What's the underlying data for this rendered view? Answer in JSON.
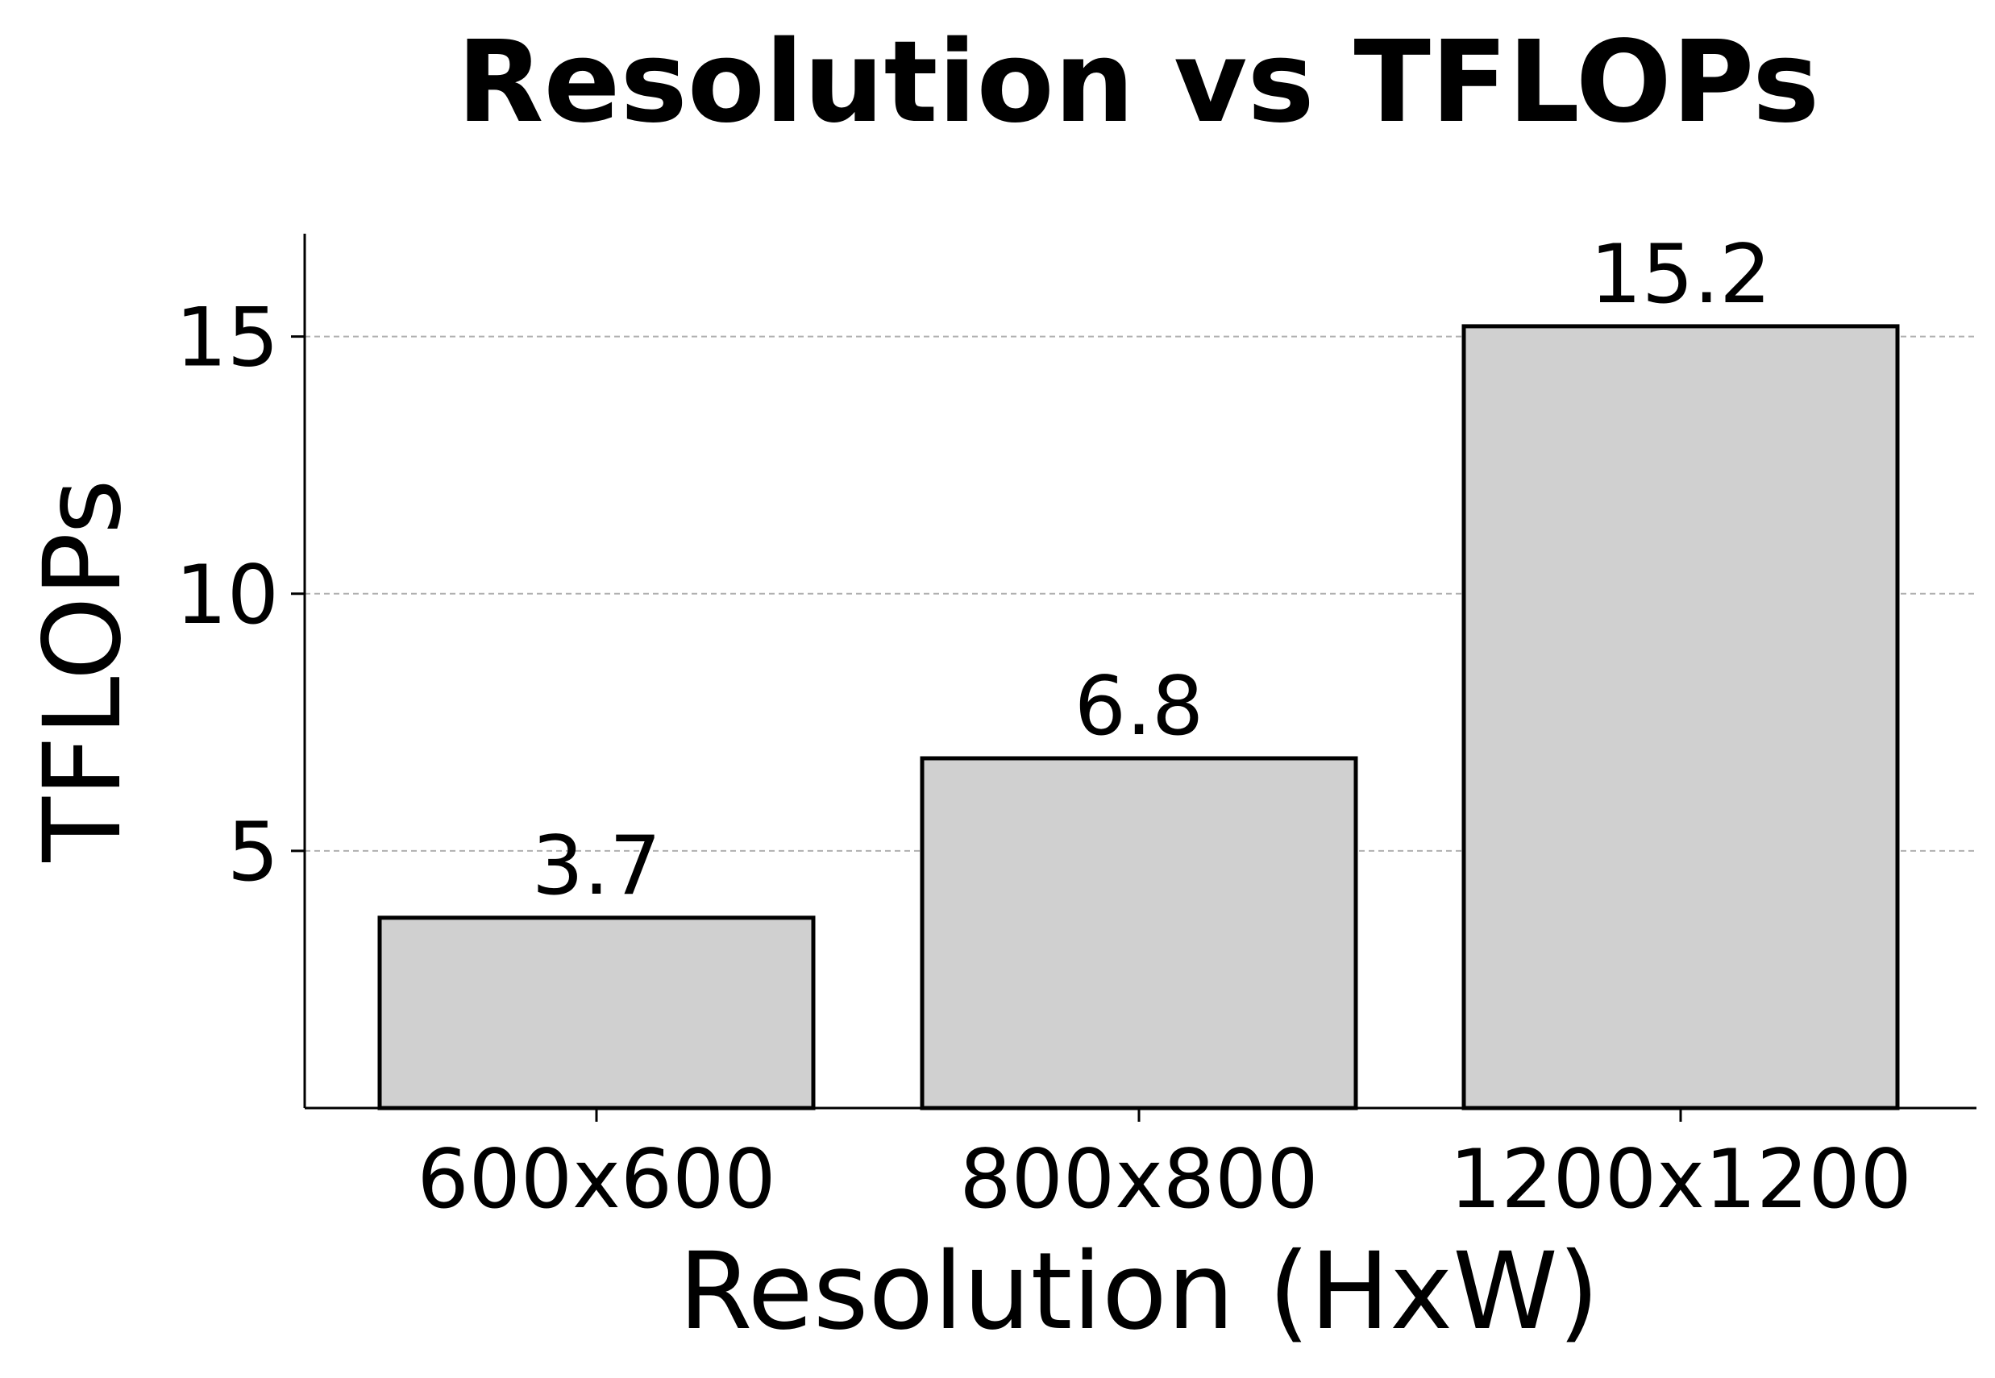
{
  "chart_data": {
    "type": "bar",
    "title": "Resolution vs TFLOPs",
    "xlabel": "Resolution (HxW)",
    "ylabel": "TFLOPs",
    "categories": [
      "600x600",
      "800x800",
      "1200x1200"
    ],
    "values": [
      3.7,
      6.8,
      15.2
    ],
    "data_labels": [
      "3.7",
      "6.8",
      "15.2"
    ],
    "yticks": [
      5,
      10,
      15
    ],
    "ytick_labels": [
      "5",
      "10",
      "15"
    ],
    "ylim": [
      0,
      17
    ],
    "grid": "y-dashed",
    "colors": {
      "bar_fill": "#d0d0d0",
      "bar_edge": "#000000",
      "grid": "#b0b0b0"
    }
  }
}
